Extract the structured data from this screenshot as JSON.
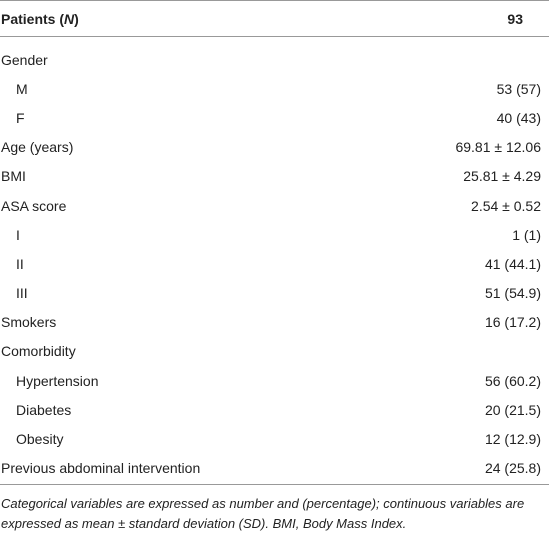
{
  "header": {
    "label_parts": [
      "Patients (",
      "N",
      ")"
    ],
    "value": "93"
  },
  "rows": [
    {
      "label": "Gender",
      "children": [
        {
          "label": "M",
          "value": "53 (57)"
        },
        {
          "label": "F",
          "value": "40 (43)"
        }
      ]
    },
    {
      "label": "Age (years)",
      "value": "69.81 ± 12.06"
    },
    {
      "label": "BMI",
      "value": "25.81 ± 4.29"
    },
    {
      "label": "ASA score",
      "value": "2.54 ± 0.52",
      "children": [
        {
          "label": "I",
          "value": "1 (1)"
        },
        {
          "label": "II",
          "value": "41 (44.1)"
        },
        {
          "label": "III",
          "value": "51 (54.9)"
        }
      ]
    },
    {
      "label": "Smokers",
      "value": "16 (17.2)"
    },
    {
      "label": "Comorbidity",
      "children": [
        {
          "label": "Hypertension",
          "value": "56 (60.2)"
        },
        {
          "label": "Diabetes",
          "value": "20 (21.5)"
        },
        {
          "label": "Obesity",
          "value": "12 (12.9)"
        }
      ]
    },
    {
      "label": "Previous abdominal intervention",
      "value": "24 (25.8)"
    }
  ],
  "footnote": "Categorical variables are expressed as number and (percentage); continuous variables are expressed as mean ± standard deviation (SD). BMI, Body Mass Index."
}
